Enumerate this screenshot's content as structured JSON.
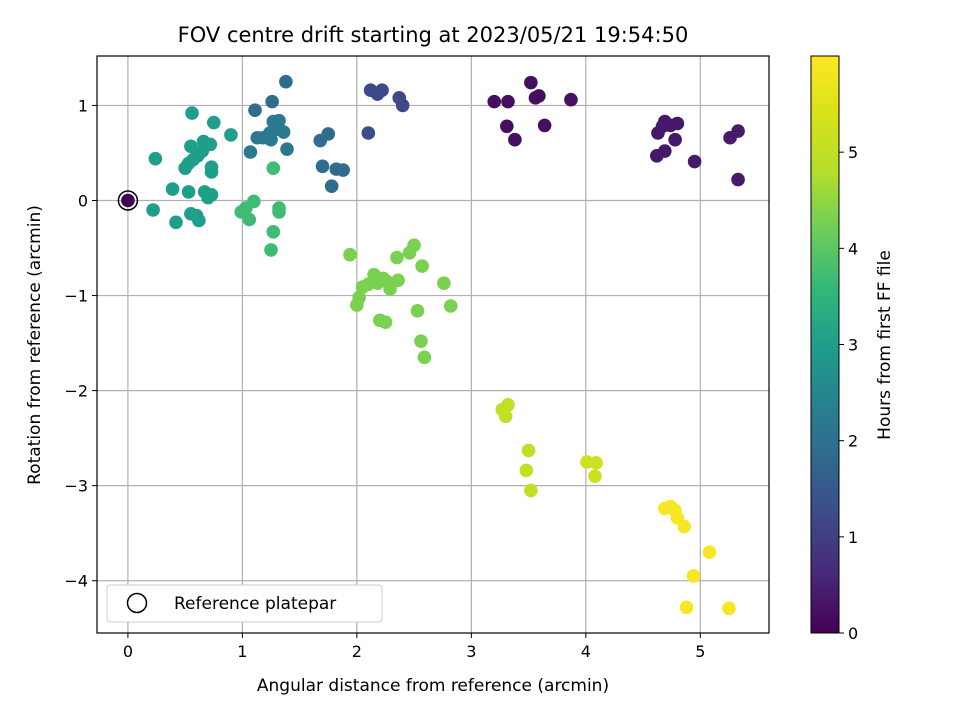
{
  "chart_data": {
    "type": "scatter",
    "title": "FOV centre drift starting at 2023/05/21 19:54:50",
    "xlabel": "Angular distance from reference (arcmin)",
    "ylabel": "Rotation from reference (arcmin)",
    "xlim": [
      -0.27,
      5.6
    ],
    "ylim": [
      -4.55,
      1.52
    ],
    "xticks": [
      0,
      1,
      2,
      3,
      4,
      5
    ],
    "yticks": [
      1,
      0,
      -1,
      -2,
      -3,
      -4
    ],
    "xtick_labels": [
      "0",
      "1",
      "2",
      "3",
      "4",
      "5"
    ],
    "ytick_labels": [
      "1",
      "0",
      "−1",
      "−2",
      "−3",
      "−4"
    ],
    "grid": true,
    "colormap": "viridis",
    "colorbar": {
      "label": "Hours from first FF file",
      "range": [
        0,
        6
      ],
      "ticks": [
        0,
        1,
        2,
        3,
        4,
        5
      ],
      "tick_labels": [
        "0",
        "1",
        "2",
        "3",
        "4",
        "5"
      ]
    },
    "legend": {
      "placement": "lower-left",
      "entries": [
        "Reference platepar"
      ]
    },
    "reference_point": {
      "x": 0,
      "y": 0
    },
    "points": [
      {
        "x": 3.2,
        "y": 1.04,
        "c": 0.2
      },
      {
        "x": 3.32,
        "y": 1.04,
        "c": 0.2
      },
      {
        "x": 3.52,
        "y": 1.24,
        "c": 0.22
      },
      {
        "x": 3.56,
        "y": 1.08,
        "c": 0.22
      },
      {
        "x": 3.59,
        "y": 1.1,
        "c": 0.22
      },
      {
        "x": 3.87,
        "y": 1.06,
        "c": 0.25
      },
      {
        "x": 3.31,
        "y": 0.78,
        "c": 0.2
      },
      {
        "x": 3.64,
        "y": 0.79,
        "c": 0.22
      },
      {
        "x": 3.38,
        "y": 0.64,
        "c": 0.2
      },
      {
        "x": 4.63,
        "y": 0.71,
        "c": 0.35
      },
      {
        "x": 4.67,
        "y": 0.78,
        "c": 0.35
      },
      {
        "x": 4.69,
        "y": 0.83,
        "c": 0.35
      },
      {
        "x": 4.74,
        "y": 0.79,
        "c": 0.35
      },
      {
        "x": 4.8,
        "y": 0.81,
        "c": 0.35
      },
      {
        "x": 4.78,
        "y": 0.64,
        "c": 0.35
      },
      {
        "x": 4.69,
        "y": 0.52,
        "c": 0.35
      },
      {
        "x": 4.62,
        "y": 0.47,
        "c": 0.35
      },
      {
        "x": 4.95,
        "y": 0.41,
        "c": 0.38
      },
      {
        "x": 5.33,
        "y": 0.73,
        "c": 0.38
      },
      {
        "x": 5.26,
        "y": 0.66,
        "c": 0.38
      },
      {
        "x": 5.33,
        "y": 0.22,
        "c": 0.38
      },
      {
        "x": 2.12,
        "y": 1.16,
        "c": 1.2
      },
      {
        "x": 2.18,
        "y": 1.12,
        "c": 1.2
      },
      {
        "x": 2.22,
        "y": 1.16,
        "c": 1.2
      },
      {
        "x": 2.37,
        "y": 1.08,
        "c": 1.2
      },
      {
        "x": 2.4,
        "y": 1.0,
        "c": 1.2
      },
      {
        "x": 2.1,
        "y": 0.71,
        "c": 1.3
      },
      {
        "x": 1.38,
        "y": 1.25,
        "c": 1.9
      },
      {
        "x": 1.26,
        "y": 1.04,
        "c": 1.9
      },
      {
        "x": 1.11,
        "y": 0.95,
        "c": 1.9
      },
      {
        "x": 1.68,
        "y": 0.63,
        "c": 1.9
      },
      {
        "x": 1.75,
        "y": 0.7,
        "c": 1.9
      },
      {
        "x": 1.7,
        "y": 0.36,
        "c": 1.9
      },
      {
        "x": 1.82,
        "y": 0.33,
        "c": 1.9
      },
      {
        "x": 1.88,
        "y": 0.32,
        "c": 1.9
      },
      {
        "x": 1.78,
        "y": 0.15,
        "c": 1.9
      },
      {
        "x": 1.27,
        "y": 0.83,
        "c": 2.2
      },
      {
        "x": 1.32,
        "y": 0.84,
        "c": 2.2
      },
      {
        "x": 1.36,
        "y": 0.72,
        "c": 2.2
      },
      {
        "x": 1.3,
        "y": 0.75,
        "c": 2.2
      },
      {
        "x": 1.24,
        "y": 0.71,
        "c": 2.2
      },
      {
        "x": 1.22,
        "y": 0.66,
        "c": 2.2
      },
      {
        "x": 1.13,
        "y": 0.66,
        "c": 2.2
      },
      {
        "x": 1.25,
        "y": 0.64,
        "c": 2.2
      },
      {
        "x": 1.39,
        "y": 0.54,
        "c": 2.2
      },
      {
        "x": 1.07,
        "y": 0.51,
        "c": 2.2
      },
      {
        "x": 1.18,
        "y": 0.66,
        "c": 2.2
      },
      {
        "x": 0.56,
        "y": 0.92,
        "c": 3.0
      },
      {
        "x": 0.75,
        "y": 0.82,
        "c": 3.0
      },
      {
        "x": 0.9,
        "y": 0.69,
        "c": 3.0
      },
      {
        "x": 0.66,
        "y": 0.62,
        "c": 3.0
      },
      {
        "x": 0.72,
        "y": 0.59,
        "c": 3.0
      },
      {
        "x": 0.55,
        "y": 0.57,
        "c": 3.0
      },
      {
        "x": 0.65,
        "y": 0.52,
        "c": 3.0
      },
      {
        "x": 0.61,
        "y": 0.47,
        "c": 3.0
      },
      {
        "x": 0.57,
        "y": 0.43,
        "c": 3.0
      },
      {
        "x": 0.53,
        "y": 0.39,
        "c": 3.0
      },
      {
        "x": 0.5,
        "y": 0.34,
        "c": 3.0
      },
      {
        "x": 0.24,
        "y": 0.44,
        "c": 3.0
      },
      {
        "x": 0.73,
        "y": 0.35,
        "c": 3.0
      },
      {
        "x": 0.73,
        "y": 0.3,
        "c": 3.0
      },
      {
        "x": 0.39,
        "y": 0.12,
        "c": 3.0
      },
      {
        "x": 0.53,
        "y": 0.09,
        "c": 3.0
      },
      {
        "x": 0.67,
        "y": 0.09,
        "c": 3.0
      },
      {
        "x": 0.73,
        "y": 0.06,
        "c": 3.0
      },
      {
        "x": 0.7,
        "y": 0.03,
        "c": 3.0
      },
      {
        "x": 0.22,
        "y": -0.1,
        "c": 3.0
      },
      {
        "x": 0.55,
        "y": -0.14,
        "c": 3.0
      },
      {
        "x": 0.6,
        "y": -0.16,
        "c": 3.0
      },
      {
        "x": 0.62,
        "y": -0.21,
        "c": 3.0
      },
      {
        "x": 0.42,
        "y": -0.23,
        "c": 3.0
      },
      {
        "x": 1.27,
        "y": 0.34,
        "c": 3.7
      },
      {
        "x": 1.1,
        "y": -0.01,
        "c": 3.7
      },
      {
        "x": 1.32,
        "y": -0.08,
        "c": 3.7
      },
      {
        "x": 1.32,
        "y": -0.12,
        "c": 3.7
      },
      {
        "x": 0.99,
        "y": -0.12,
        "c": 3.7
      },
      {
        "x": 1.03,
        "y": -0.08,
        "c": 3.7
      },
      {
        "x": 1.06,
        "y": -0.2,
        "c": 3.7
      },
      {
        "x": 1.27,
        "y": -0.33,
        "c": 3.7
      },
      {
        "x": 1.25,
        "y": -0.52,
        "c": 3.7
      },
      {
        "x": 1.94,
        "y": -0.57,
        "c": 4.3
      },
      {
        "x": 2.5,
        "y": -0.47,
        "c": 4.3
      },
      {
        "x": 2.46,
        "y": -0.55,
        "c": 4.3
      },
      {
        "x": 2.35,
        "y": -0.6,
        "c": 4.3
      },
      {
        "x": 2.57,
        "y": -0.69,
        "c": 4.3
      },
      {
        "x": 2.76,
        "y": -0.87,
        "c": 4.3
      },
      {
        "x": 2.15,
        "y": -0.78,
        "c": 4.3
      },
      {
        "x": 2.23,
        "y": -0.82,
        "c": 4.3
      },
      {
        "x": 2.26,
        "y": -0.85,
        "c": 4.3
      },
      {
        "x": 2.36,
        "y": -0.84,
        "c": 4.3
      },
      {
        "x": 2.18,
        "y": -0.87,
        "c": 4.3
      },
      {
        "x": 2.1,
        "y": -0.88,
        "c": 4.3
      },
      {
        "x": 2.05,
        "y": -0.91,
        "c": 4.3
      },
      {
        "x": 2.29,
        "y": -0.93,
        "c": 4.3
      },
      {
        "x": 2.02,
        "y": -1.02,
        "c": 4.3
      },
      {
        "x": 2.0,
        "y": -1.1,
        "c": 4.3
      },
      {
        "x": 2.82,
        "y": -1.11,
        "c": 4.3
      },
      {
        "x": 2.53,
        "y": -1.16,
        "c": 4.3
      },
      {
        "x": 2.2,
        "y": -1.26,
        "c": 4.3
      },
      {
        "x": 2.25,
        "y": -1.28,
        "c": 4.3
      },
      {
        "x": 2.56,
        "y": -1.48,
        "c": 4.3
      },
      {
        "x": 2.59,
        "y": -1.65,
        "c": 4.3
      },
      {
        "x": 3.27,
        "y": -2.2,
        "c": 5.0
      },
      {
        "x": 3.32,
        "y": -2.15,
        "c": 5.0
      },
      {
        "x": 3.3,
        "y": -2.27,
        "c": 5.0
      },
      {
        "x": 3.5,
        "y": -2.63,
        "c": 5.0
      },
      {
        "x": 3.48,
        "y": -2.84,
        "c": 5.0
      },
      {
        "x": 3.52,
        "y": -3.05,
        "c": 5.0
      },
      {
        "x": 4.01,
        "y": -2.75,
        "c": 5.2
      },
      {
        "x": 4.09,
        "y": -2.76,
        "c": 5.2
      },
      {
        "x": 4.08,
        "y": -2.9,
        "c": 5.2
      },
      {
        "x": 4.69,
        "y": -3.24,
        "c": 5.9
      },
      {
        "x": 4.74,
        "y": -3.22,
        "c": 5.9
      },
      {
        "x": 4.78,
        "y": -3.26,
        "c": 5.9
      },
      {
        "x": 4.8,
        "y": -3.34,
        "c": 5.9
      },
      {
        "x": 4.86,
        "y": -3.43,
        "c": 5.9
      },
      {
        "x": 5.08,
        "y": -3.7,
        "c": 5.9
      },
      {
        "x": 4.94,
        "y": -3.95,
        "c": 5.9
      },
      {
        "x": 4.88,
        "y": -4.28,
        "c": 5.9
      },
      {
        "x": 5.25,
        "y": -4.29,
        "c": 5.9
      }
    ]
  }
}
